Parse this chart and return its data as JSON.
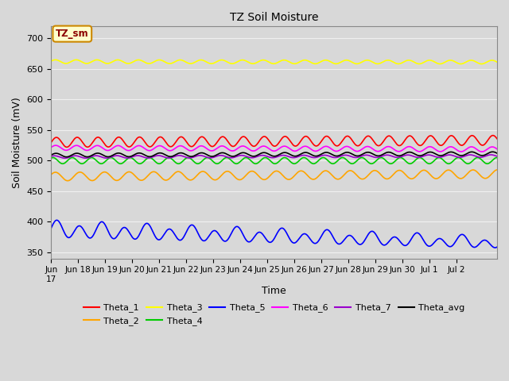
{
  "title": "TZ Soil Moisture",
  "xlabel": "Time",
  "ylabel": "Soil Moisture (mV)",
  "ylim": [
    340,
    720
  ],
  "yticks": [
    350,
    400,
    450,
    500,
    550,
    600,
    650,
    700
  ],
  "background_color": "#d8d8d8",
  "plot_bg_color": "#d8d8d8",
  "grid_color": "#f0f0f0",
  "n_points": 2000,
  "total_days": 16.5,
  "xtick_positions": [
    0,
    1,
    2,
    3,
    4,
    5,
    6,
    7,
    8,
    9,
    10,
    11,
    12,
    13,
    14,
    15
  ],
  "xtick_labels": [
    "Jun 17",
    "Jun 18",
    "Jun 19",
    "Jun 20",
    "Jun 21",
    "Jun 22",
    "Jun 23",
    "Jun 24",
    "Jun 25",
    "Jun 26",
    "Jun 27",
    "Jun 28",
    "Jun 29",
    "Jun 30",
    "Jul 1",
    "Jul 2"
  ],
  "first_xlabel": "Jun",
  "series": {
    "Theta_1": {
      "color": "#ff0000",
      "base": 530,
      "amp": 8,
      "freq_per_day": 1.3,
      "trend": 0.2,
      "phase": 0.0
    },
    "Theta_2": {
      "color": "#ffa500",
      "base": 474,
      "amp": 7,
      "freq_per_day": 1.1,
      "trend": 0.25,
      "phase": 0.5
    },
    "Theta_3": {
      "color": "#ffff00",
      "base": 662,
      "amp": 3,
      "freq_per_day": 1.3,
      "trend": -0.05,
      "phase": 0.3
    },
    "Theta_4": {
      "color": "#00cc00",
      "base": 500,
      "amp": 5,
      "freq_per_day": 1.4,
      "trend": 0.0,
      "phase": 1.0
    },
    "Theta_5": {
      "color": "#0000ff",
      "base": 387,
      "amp": 12,
      "freq_per_day": 1.2,
      "trend": -1.3,
      "phase": 0.0
    },
    "Theta_6": {
      "color": "#ff00ff",
      "base": 521,
      "amp": 4,
      "freq_per_day": 1.3,
      "trend": -0.15,
      "phase": 0.2
    },
    "Theta_7": {
      "color": "#9900cc",
      "base": 506,
      "amp": 2,
      "freq_per_day": 1.3,
      "trend": 0.1,
      "phase": 0.6
    },
    "Theta_avg": {
      "color": "#000000",
      "base": 509,
      "amp": 3,
      "freq_per_day": 1.3,
      "trend": 0.15,
      "phase": 0.1
    }
  },
  "annotation_text": "TZ_sm",
  "annotation_bg": "#ffffcc",
  "annotation_border": "#cc8800",
  "legend_order": [
    "Theta_1",
    "Theta_2",
    "Theta_3",
    "Theta_4",
    "Theta_5",
    "Theta_6",
    "Theta_7",
    "Theta_avg"
  ]
}
